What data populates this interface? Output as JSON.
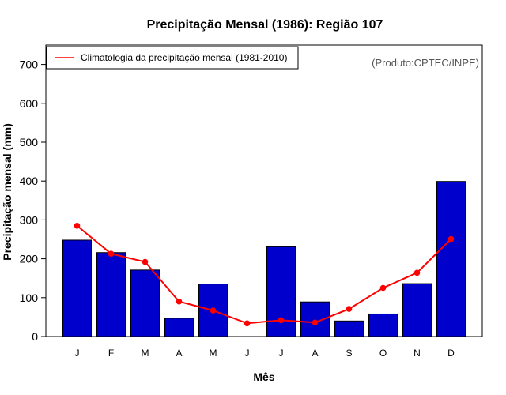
{
  "chart_data": {
    "type": "bar",
    "title": "Precipitação Mensal (1986): Região 107",
    "xlabel": "Mês",
    "ylabel": "Precipitação mensal (mm)",
    "source": "(Produto:CPTEC/INPE)",
    "categories": [
      "J",
      "F",
      "M",
      "A",
      "M",
      "J",
      "J",
      "A",
      "S",
      "O",
      "N",
      "D"
    ],
    "ylim": [
      0,
      750
    ],
    "yticks": [
      0,
      100,
      200,
      300,
      400,
      500,
      600,
      700
    ],
    "grid": "vertical-dotted",
    "legend_position": "top-left",
    "series": [
      {
        "name": "Precipitação mensal (1986)",
        "kind": "bar",
        "color": "#0000CD",
        "values": [
          248,
          216,
          171,
          47,
          135,
          0,
          231,
          89,
          40,
          58,
          136,
          399
        ]
      },
      {
        "name": "Climatologia da precipitação mensal (1981-2010)",
        "kind": "line",
        "color": "#FF0000",
        "values": [
          285,
          213,
          192,
          90,
          67,
          34,
          42,
          36,
          71,
          125,
          164,
          251
        ]
      }
    ]
  }
}
